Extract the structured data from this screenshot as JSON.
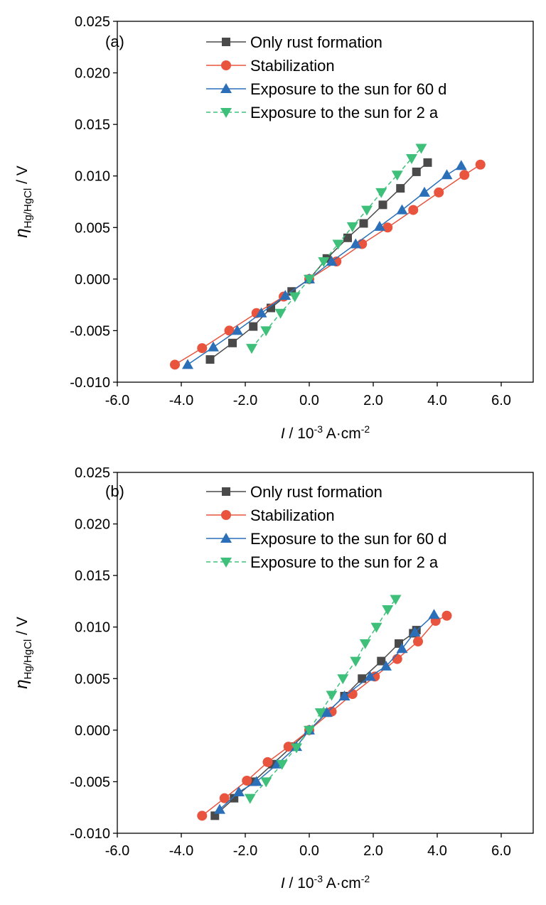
{
  "chart_data": [
    {
      "type": "line",
      "panel_label": "(a)",
      "xlabel": {
        "symbol": "I",
        "mid": " / 10",
        "sup": "-3",
        "unit": " A·cm",
        "unit_sup": "-2"
      },
      "ylabel": {
        "symbol": "η",
        "sub": "Hg/HgCl",
        "unit": " / V"
      },
      "xlim": [
        -6.0,
        7.0
      ],
      "ylim": [
        -0.01,
        0.025
      ],
      "xticks": [
        -6.0,
        -4.0,
        -2.0,
        0.0,
        2.0,
        4.0,
        6.0
      ],
      "xtick_labels": [
        "-6.0",
        "-4.0",
        "-2.0",
        "0.0",
        "2.0",
        "4.0",
        "6.0"
      ],
      "yticks": [
        -0.01,
        -0.005,
        0.0,
        0.005,
        0.01,
        0.015,
        0.02,
        0.025
      ],
      "ytick_labels": [
        "-0.010",
        "-0.005",
        "0.000",
        "0.005",
        "0.010",
        "0.015",
        "0.020",
        "0.025"
      ],
      "legend_position": "top",
      "grid": false,
      "series": [
        {
          "name": "Only rust formation",
          "color": "#4a4a4a",
          "marker": "square",
          "dash": false,
          "points": [
            [
              -3.1,
              -0.0078
            ],
            [
              -2.4,
              -0.0062
            ],
            [
              -1.75,
              -0.0046
            ],
            [
              -1.2,
              -0.0028
            ],
            [
              -0.55,
              -0.0012
            ],
            [
              0.0,
              0.0
            ],
            [
              0.55,
              0.002
            ],
            [
              1.2,
              0.004
            ],
            [
              1.7,
              0.0054
            ],
            [
              2.3,
              0.0072
            ],
            [
              2.85,
              0.0088
            ],
            [
              3.35,
              0.0104
            ],
            [
              3.7,
              0.0113
            ]
          ]
        },
        {
          "name": "Stabilization",
          "color": "#e8543e",
          "marker": "circle",
          "dash": false,
          "points": [
            [
              -4.2,
              -0.0083
            ],
            [
              -3.35,
              -0.0067
            ],
            [
              -2.5,
              -0.005
            ],
            [
              -1.65,
              -0.0033
            ],
            [
              -0.8,
              -0.0017
            ],
            [
              0.0,
              0.0
            ],
            [
              0.85,
              0.0017
            ],
            [
              1.65,
              0.0034
            ],
            [
              2.45,
              0.005
            ],
            [
              3.25,
              0.0067
            ],
            [
              4.05,
              0.0084
            ],
            [
              4.85,
              0.0101
            ],
            [
              5.35,
              0.0111
            ]
          ]
        },
        {
          "name": "Exposure to the sun for 60 d",
          "color": "#2a6fb8",
          "marker": "triangle-up",
          "dash": false,
          "points": [
            [
              -3.8,
              -0.0083
            ],
            [
              -3.0,
              -0.0066
            ],
            [
              -2.25,
              -0.005
            ],
            [
              -1.5,
              -0.0033
            ],
            [
              -0.75,
              -0.0016
            ],
            [
              0.0,
              0.0
            ],
            [
              0.7,
              0.0017
            ],
            [
              1.45,
              0.0034
            ],
            [
              2.2,
              0.0051
            ],
            [
              2.9,
              0.0067
            ],
            [
              3.6,
              0.0084
            ],
            [
              4.3,
              0.0101
            ],
            [
              4.75,
              0.011
            ]
          ]
        },
        {
          "name": "Exposure to the sun for 2 a",
          "color": "#3ec07a",
          "marker": "triangle-down",
          "dash": true,
          "points": [
            [
              -1.8,
              -0.0067
            ],
            [
              -1.35,
              -0.005
            ],
            [
              -0.9,
              -0.0033
            ],
            [
              -0.45,
              -0.0017
            ],
            [
              0.0,
              0.0
            ],
            [
              0.45,
              0.0017
            ],
            [
              0.9,
              0.0034
            ],
            [
              1.35,
              0.0051
            ],
            [
              1.8,
              0.0067
            ],
            [
              2.25,
              0.0084
            ],
            [
              2.75,
              0.0101
            ],
            [
              3.2,
              0.0117
            ],
            [
              3.5,
              0.0127
            ]
          ]
        }
      ]
    },
    {
      "type": "line",
      "panel_label": "(b)",
      "xlabel": {
        "symbol": "I",
        "mid": " / 10",
        "sup": "-3",
        "unit": " A·cm",
        "unit_sup": "-2"
      },
      "ylabel": {
        "symbol": "η",
        "sub": "Hg/HgCl",
        "unit": " / V"
      },
      "xlim": [
        -6.0,
        7.0
      ],
      "ylim": [
        -0.01,
        0.025
      ],
      "xticks": [
        -6.0,
        -4.0,
        -2.0,
        0.0,
        2.0,
        4.0,
        6.0
      ],
      "xtick_labels": [
        "-6.0",
        "-4.0",
        "-2.0",
        "0.0",
        "2.0",
        "4.0",
        "6.0"
      ],
      "yticks": [
        -0.01,
        -0.005,
        0.0,
        0.005,
        0.01,
        0.015,
        0.02,
        0.025
      ],
      "ytick_labels": [
        "-0.010",
        "-0.005",
        "0.000",
        "0.005",
        "0.010",
        "0.015",
        "0.020",
        "0.025"
      ],
      "legend_position": "top",
      "grid": false,
      "series": [
        {
          "name": "Only rust formation",
          "color": "#4a4a4a",
          "marker": "square",
          "dash": false,
          "points": [
            [
              -2.95,
              -0.0083
            ],
            [
              -2.35,
              -0.0066
            ],
            [
              -1.75,
              -0.005
            ],
            [
              -1.15,
              -0.0033
            ],
            [
              -0.55,
              -0.0016
            ],
            [
              0.0,
              0.0
            ],
            [
              0.55,
              0.0017
            ],
            [
              1.1,
              0.0033
            ],
            [
              1.65,
              0.005
            ],
            [
              2.25,
              0.0067
            ],
            [
              2.8,
              0.0084
            ],
            [
              3.25,
              0.0094
            ],
            [
              3.35,
              0.0097
            ]
          ]
        },
        {
          "name": "Stabilization",
          "color": "#e8543e",
          "marker": "circle",
          "dash": false,
          "points": [
            [
              -3.35,
              -0.0083
            ],
            [
              -2.65,
              -0.0066
            ],
            [
              -1.95,
              -0.0049
            ],
            [
              -1.3,
              -0.0031
            ],
            [
              -0.65,
              -0.0016
            ],
            [
              0.0,
              0.0
            ],
            [
              0.7,
              0.0018
            ],
            [
              1.35,
              0.0035
            ],
            [
              2.05,
              0.0052
            ],
            [
              2.75,
              0.0069
            ],
            [
              3.4,
              0.0086
            ],
            [
              3.95,
              0.0106
            ],
            [
              4.3,
              0.0111
            ]
          ]
        },
        {
          "name": "Exposure to the sun for 60 d",
          "color": "#2a6fb8",
          "marker": "triangle-up",
          "dash": false,
          "points": [
            [
              -2.8,
              -0.0077
            ],
            [
              -2.2,
              -0.006
            ],
            [
              -1.65,
              -0.005
            ],
            [
              -1.0,
              -0.0033
            ],
            [
              -0.4,
              -0.0016
            ],
            [
              0.0,
              0.0
            ],
            [
              0.55,
              0.0017
            ],
            [
              1.1,
              0.0033
            ],
            [
              1.9,
              0.0052
            ],
            [
              2.4,
              0.0062
            ],
            [
              2.9,
              0.0079
            ],
            [
              3.3,
              0.0095
            ],
            [
              3.9,
              0.0112
            ]
          ]
        },
        {
          "name": "Exposure to the sun for 2 a",
          "color": "#3ec07a",
          "marker": "triangle-down",
          "dash": true,
          "points": [
            [
              -1.85,
              -0.0066
            ],
            [
              -1.35,
              -0.005
            ],
            [
              -0.85,
              -0.0033
            ],
            [
              -0.4,
              -0.0017
            ],
            [
              0.0,
              0.0
            ],
            [
              0.35,
              0.0017
            ],
            [
              0.7,
              0.0034
            ],
            [
              1.05,
              0.005
            ],
            [
              1.45,
              0.0067
            ],
            [
              1.75,
              0.0084
            ],
            [
              2.1,
              0.01
            ],
            [
              2.45,
              0.0117
            ],
            [
              2.7,
              0.0127
            ]
          ]
        }
      ]
    }
  ]
}
